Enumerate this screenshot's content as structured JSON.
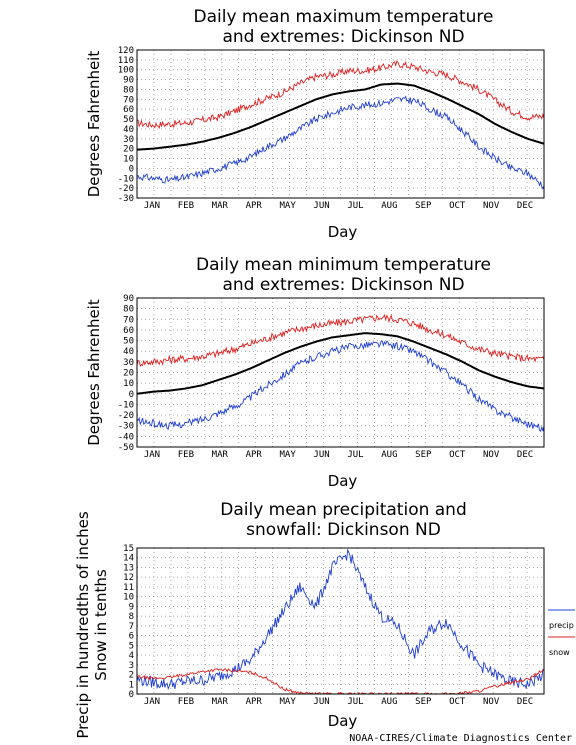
{
  "credit": "NOAA-CIRES/Climate Diagnostics Center",
  "chart_data": [
    {
      "type": "line",
      "title_lines": [
        "Daily mean maximum temperature",
        "and extremes: Dickinson ND"
      ],
      "xlabel": "Day",
      "ylabel": "Degrees Fahrenheit",
      "months": [
        "JAN",
        "FEB",
        "MAR",
        "APR",
        "MAY",
        "JUN",
        "JUL",
        "AUG",
        "SEP",
        "OCT",
        "NOV",
        "DEC"
      ],
      "ylim": [
        -30,
        120
      ],
      "yticks": [
        -30,
        -20,
        -10,
        0,
        10,
        20,
        30,
        40,
        50,
        60,
        70,
        80,
        90,
        100,
        110,
        120
      ],
      "grid": true,
      "series": [
        {
          "key": "high_extreme",
          "color": "#e02020",
          "values": [
            46,
            44,
            45,
            46,
            49,
            52,
            58,
            65,
            71,
            77,
            86,
            93,
            95,
            99,
            99,
            102,
            106,
            103,
            98,
            95,
            88,
            80,
            69,
            58,
            52,
            53
          ]
        },
        {
          "key": "mean",
          "color": "#000000",
          "values": [
            19,
            20,
            22,
            24,
            27,
            31,
            36,
            42,
            49,
            56,
            63,
            70,
            75,
            78,
            80,
            85,
            86,
            84,
            78,
            71,
            63,
            55,
            45,
            37,
            30,
            25
          ]
        },
        {
          "key": "low_extreme",
          "color": "#2040d0",
          "values": [
            -8,
            -10,
            -12,
            -9,
            -5,
            0,
            5,
            12,
            22,
            30,
            40,
            50,
            56,
            62,
            64,
            66,
            70,
            69,
            60,
            52,
            38,
            22,
            10,
            0,
            -5,
            -18
          ]
        }
      ]
    },
    {
      "type": "line",
      "title_lines": [
        "Daily mean minimum temperature",
        "and extremes: Dickinson ND"
      ],
      "xlabel": "Day",
      "ylabel": "Degrees Fahrenheit",
      "months": [
        "JAN",
        "FEB",
        "MAR",
        "APR",
        "MAY",
        "JUN",
        "JUL",
        "AUG",
        "SEP",
        "OCT",
        "NOV",
        "DEC"
      ],
      "ylim": [
        -50,
        90
      ],
      "yticks": [
        -50,
        -40,
        -30,
        -20,
        -10,
        0,
        10,
        20,
        30,
        40,
        50,
        60,
        70,
        80,
        90
      ],
      "grid": true,
      "series": [
        {
          "key": "high_extreme",
          "color": "#e02020",
          "values": [
            29,
            30,
            32,
            33,
            35,
            38,
            42,
            47,
            52,
            57,
            61,
            64,
            66,
            68,
            70,
            72,
            70,
            66,
            60,
            55,
            48,
            42,
            38,
            35,
            33,
            32
          ]
        },
        {
          "key": "mean",
          "color": "#000000",
          "values": [
            0,
            2,
            3,
            5,
            8,
            13,
            18,
            24,
            31,
            38,
            44,
            49,
            53,
            55,
            57,
            56,
            54,
            49,
            43,
            37,
            30,
            22,
            16,
            11,
            7,
            5
          ]
        },
        {
          "key": "low_extreme",
          "color": "#2040d0",
          "values": [
            -25,
            -28,
            -30,
            -28,
            -24,
            -18,
            -12,
            -3,
            8,
            18,
            28,
            35,
            40,
            44,
            46,
            47,
            45,
            40,
            30,
            20,
            8,
            -5,
            -15,
            -22,
            -28,
            -33
          ]
        }
      ]
    },
    {
      "type": "line",
      "title_lines": [
        "Daily mean precipitation and",
        "snowfall: Dickinson ND"
      ],
      "xlabel": "Day",
      "ylabel_lines": [
        "Precip in hundredths of inches",
        "Snow in tenths"
      ],
      "months": [
        "JAN",
        "FEB",
        "MAR",
        "APR",
        "MAY",
        "JUN",
        "JUL",
        "AUG",
        "SEP",
        "OCT",
        "NOV",
        "DEC"
      ],
      "ylim": [
        0,
        15
      ],
      "yticks": [
        0,
        1,
        2,
        3,
        4,
        5,
        6,
        7,
        8,
        9,
        10,
        11,
        12,
        13,
        14,
        15
      ],
      "grid": true,
      "legend": [
        "precip",
        "snow"
      ],
      "legend_placement": "right",
      "series": [
        {
          "key": "precip",
          "name": "precip",
          "color": "#2040d0",
          "values": [
            1.5,
            1.2,
            1.0,
            1.3,
            1.4,
            1.8,
            2.5,
            3.5,
            6.0,
            8.5,
            11.0,
            9.0,
            13.0,
            14.5,
            11.0,
            8.0,
            7.0,
            4.0,
            6.5,
            7.5,
            5.0,
            3.0,
            2.0,
            1.2,
            1.0,
            2.0
          ]
        },
        {
          "key": "snow",
          "name": "snow",
          "color": "#e02020",
          "values": [
            1.8,
            1.6,
            1.7,
            2.0,
            2.3,
            2.5,
            2.4,
            2.2,
            1.6,
            0.5,
            0.1,
            0,
            0,
            0,
            0,
            0,
            0,
            0,
            0,
            0,
            0.1,
            0.3,
            0.8,
            1.2,
            1.5,
            2.5
          ]
        }
      ]
    }
  ]
}
